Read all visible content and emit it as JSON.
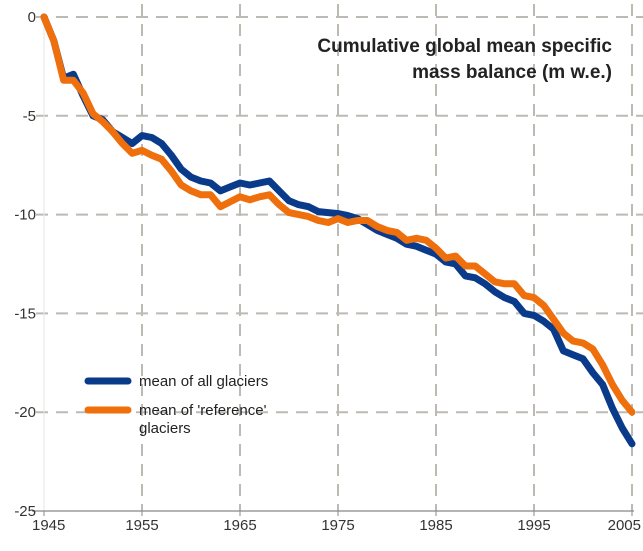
{
  "chart_data": {
    "type": "line",
    "title": "Cumulative global mean specific mass balance (m w.e.)",
    "title_lines": [
      "Cumulative global mean specific",
      "mass balance (m w.e.)"
    ],
    "title_position": "top-right",
    "xlabel": "",
    "ylabel": "",
    "xlim": [
      1945,
      2005
    ],
    "ylim": [
      -25,
      0
    ],
    "x_ticks": [
      1945,
      1955,
      1965,
      1975,
      1985,
      1995,
      2005
    ],
    "x_tick_labels": [
      "1945",
      "1955",
      "1965",
      "1975",
      "1985",
      "1995",
      "2005"
    ],
    "y_ticks": [
      0,
      -5,
      -10,
      -15,
      -20,
      -25
    ],
    "y_tick_labels": [
      "0",
      "-5",
      "-10",
      "-15",
      "-20",
      "-25"
    ],
    "grid": true,
    "grid_style": "dashed",
    "legend_position": "bottom-left",
    "x": [
      1945,
      1946,
      1947,
      1948,
      1949,
      1950,
      1951,
      1952,
      1953,
      1954,
      1955,
      1956,
      1957,
      1958,
      1959,
      1960,
      1961,
      1962,
      1963,
      1964,
      1965,
      1966,
      1967,
      1968,
      1969,
      1970,
      1971,
      1972,
      1973,
      1974,
      1975,
      1976,
      1977,
      1978,
      1979,
      1980,
      1981,
      1982,
      1983,
      1984,
      1985,
      1986,
      1987,
      1988,
      1989,
      1990,
      1991,
      1992,
      1993,
      1994,
      1995,
      1996,
      1997,
      1998,
      1999,
      2000,
      2001,
      2002,
      2003,
      2004,
      2005
    ],
    "series": [
      {
        "name": "mean of all glaciers",
        "legend_lines": [
          "mean of all glaciers"
        ],
        "color": "#0a3a8a",
        "values": [
          0,
          -1.2,
          -3.1,
          -2.9,
          -4.0,
          -5.0,
          -5.2,
          -5.8,
          -6.1,
          -6.4,
          -6.0,
          -6.1,
          -6.4,
          -7.0,
          -7.7,
          -8.1,
          -8.3,
          -8.4,
          -8.8,
          -8.6,
          -8.4,
          -8.5,
          -8.4,
          -8.3,
          -8.8,
          -9.3,
          -9.5,
          -9.6,
          -9.85,
          -9.9,
          -9.95,
          -10.05,
          -10.2,
          -10.5,
          -10.8,
          -11.0,
          -11.2,
          -11.5,
          -11.6,
          -11.8,
          -12.0,
          -12.4,
          -12.5,
          -13.1,
          -13.2,
          -13.5,
          -13.9,
          -14.2,
          -14.4,
          -15.0,
          -15.1,
          -15.4,
          -15.8,
          -16.9,
          -17.1,
          -17.3,
          -18.0,
          -18.6,
          -19.8,
          -20.8,
          -21.6
        ]
      },
      {
        "name": "mean of 'reference' glaciers",
        "legend_lines": [
          "mean of 'reference'",
          "glaciers"
        ],
        "color": "#ee6f0b",
        "values": [
          0,
          -1.2,
          -3.2,
          -3.2,
          -3.85,
          -4.9,
          -5.3,
          -5.8,
          -6.4,
          -6.9,
          -6.75,
          -7.0,
          -7.2,
          -7.8,
          -8.5,
          -8.8,
          -9.0,
          -9.0,
          -9.6,
          -9.35,
          -9.1,
          -9.25,
          -9.1,
          -9.0,
          -9.5,
          -9.9,
          -10.0,
          -10.1,
          -10.3,
          -10.4,
          -10.2,
          -10.4,
          -10.3,
          -10.3,
          -10.6,
          -10.8,
          -10.9,
          -11.3,
          -11.2,
          -11.3,
          -11.7,
          -12.2,
          -12.1,
          -12.6,
          -12.6,
          -13.0,
          -13.4,
          -13.5,
          -13.5,
          -14.1,
          -14.2,
          -14.6,
          -15.3,
          -16.0,
          -16.4,
          -16.5,
          -16.8,
          -17.6,
          -18.6,
          -19.4,
          -20.0
        ]
      }
    ]
  },
  "colors": {
    "grid": "#bdb9b3",
    "axis": "#888888",
    "text": "#333333"
  }
}
